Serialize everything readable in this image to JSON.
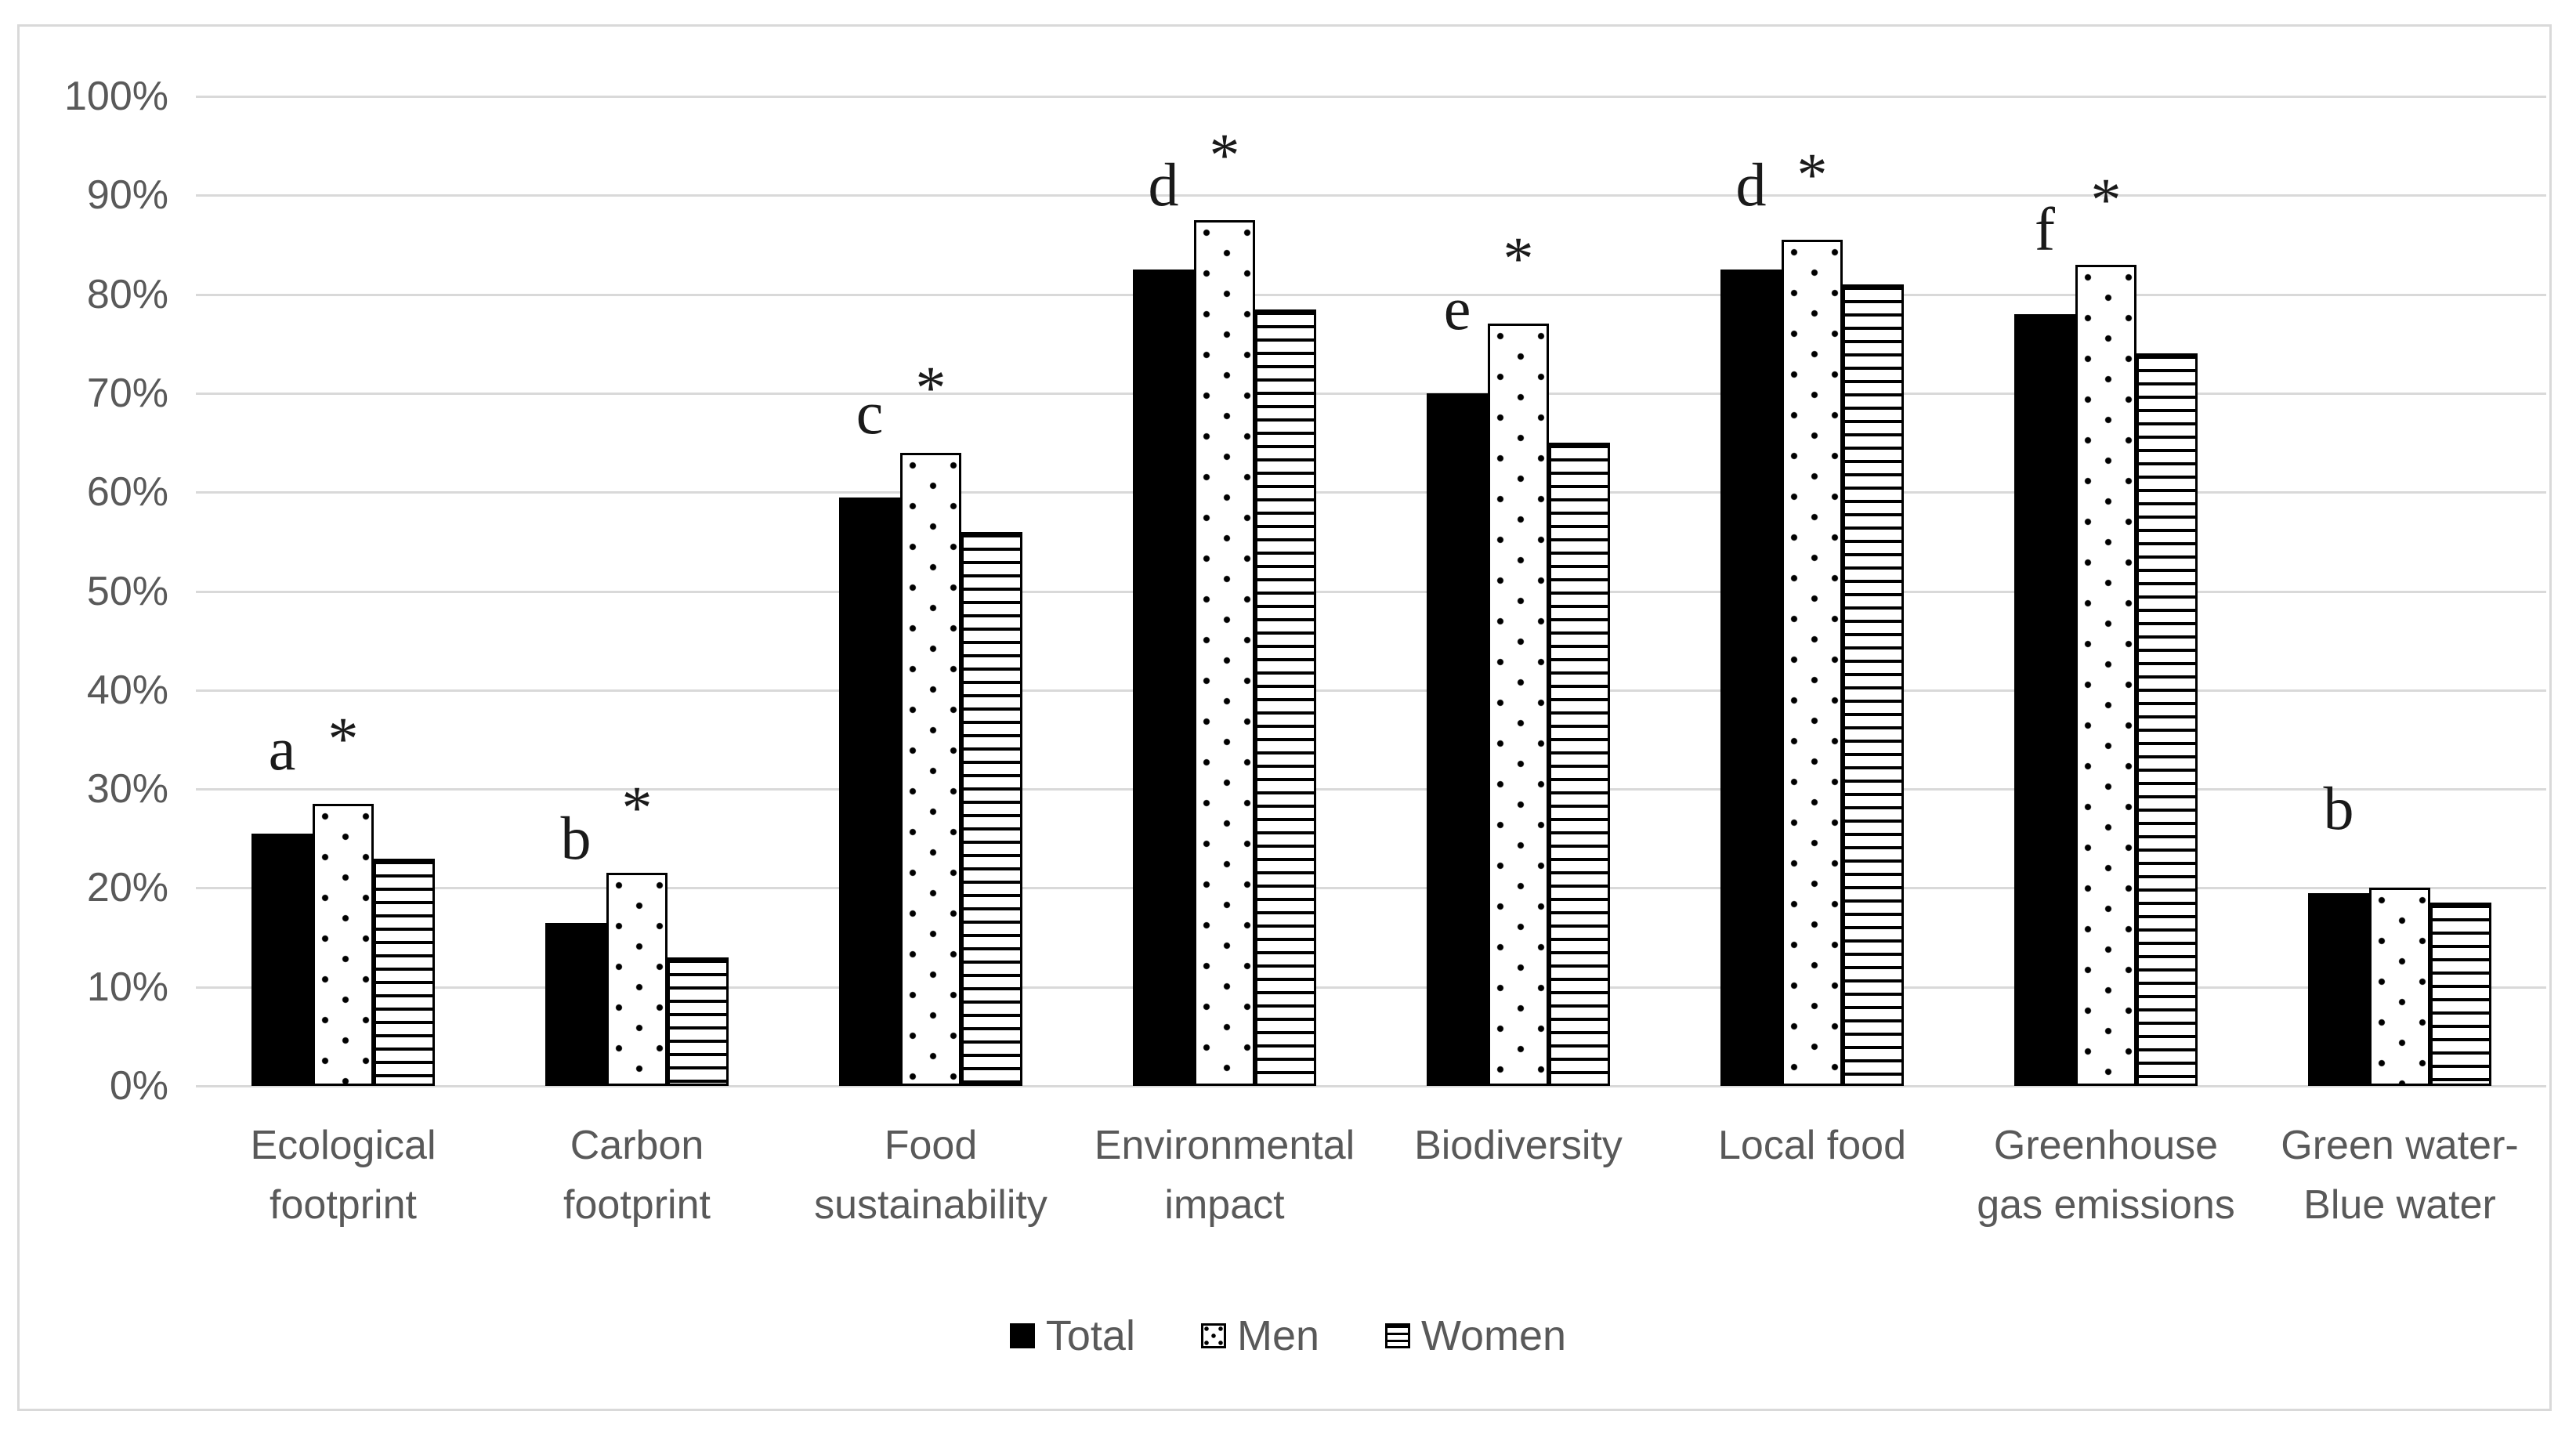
{
  "chart_data": {
    "type": "bar",
    "title": "",
    "xlabel": "",
    "ylabel": "",
    "categories": [
      "Ecological footprint",
      "Carbon footprint",
      "Food sustainability",
      "Environmental impact",
      "Biodiversity",
      "Local food",
      "Greenhouse gas emissions",
      "Green water-Blue water"
    ],
    "series": [
      {
        "name": "Total",
        "pattern": "solid",
        "values": [
          25.5,
          16.5,
          59.5,
          82.5,
          70,
          82.5,
          78,
          19.5
        ]
      },
      {
        "name": "Men",
        "pattern": "dots",
        "values": [
          28.5,
          21.5,
          64,
          87.5,
          77,
          85.5,
          83,
          20
        ]
      },
      {
        "name": "Women",
        "pattern": "hlines",
        "values": [
          23,
          13,
          56,
          78.5,
          65,
          81,
          74,
          18.5
        ]
      }
    ],
    "annotations": [
      {
        "category": "Ecological footprint",
        "letter": "a",
        "star": "*"
      },
      {
        "category": "Carbon footprint",
        "letter": "b",
        "star": "*"
      },
      {
        "category": "Food sustainability",
        "letter": "c",
        "star": "*"
      },
      {
        "category": "Environmental impact",
        "letter": "d",
        "star": "*"
      },
      {
        "category": "Biodiversity",
        "letter": "e",
        "star": "*"
      },
      {
        "category": "Local food",
        "letter": "d",
        "star": "*"
      },
      {
        "category": "Greenhouse gas emissions",
        "letter": "f",
        "star": "*"
      },
      {
        "category": "Green water-Blue water",
        "letter": "b",
        "star": ""
      }
    ],
    "y_axis": {
      "min": 0,
      "max": 100,
      "tick_step": 10,
      "tick_labels": [
        "0%",
        "10%",
        "20%",
        "30%",
        "40%",
        "50%",
        "60%",
        "70%",
        "80%",
        "90%",
        "100%"
      ],
      "grid": true
    },
    "legend": {
      "position": "bottom",
      "items": [
        "Total",
        "Men",
        "Women"
      ]
    },
    "colors": {
      "bar_fill": "#000000",
      "pattern_background": "#ffffff",
      "gridline": "#d9d9d9",
      "frame_border": "#d9d9d9",
      "axis_text": "#595959",
      "annotation_text": "#1a1a1a"
    }
  }
}
